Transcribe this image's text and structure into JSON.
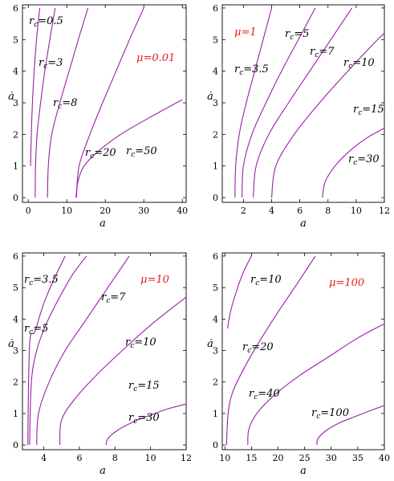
{
  "chart_data": [
    {
      "type": "line",
      "annotation": "μ=0.01",
      "xlabel": "a",
      "ylabel": "ȧ",
      "xlim": [
        -1.5,
        41
      ],
      "ylim": [
        -0.15,
        6.1
      ],
      "xticks": [
        0,
        10,
        20,
        30,
        40
      ],
      "yticks": [
        0,
        1,
        2,
        3,
        4,
        5,
        6
      ],
      "series": [
        {
          "name": "r_c=0.5",
          "label_sub": "c",
          "label_value": "=0.5",
          "x": [
            0.6,
            0.7,
            0.9,
            1.2,
            1.7,
            2.3,
            3.0
          ],
          "y": [
            1.0,
            1.6,
            2.4,
            3.3,
            4.3,
            5.2,
            6.0
          ]
        },
        {
          "name": "r_c=3",
          "label_sub": "c",
          "label_value": "=3",
          "x": [
            1.8,
            1.9,
            2.3,
            3.2,
            4.3,
            5.6,
            7.0
          ],
          "y": [
            0.0,
            1.0,
            2.0,
            3.0,
            4.0,
            5.0,
            6.0
          ]
        },
        {
          "name": "r_c=8",
          "label_sub": "c",
          "label_value": "=8",
          "x": [
            5.0,
            5.2,
            6.1,
            8.2,
            10.6,
            13.0,
            15.5
          ],
          "y": [
            0.0,
            1.0,
            2.0,
            3.0,
            4.0,
            5.0,
            6.0
          ]
        },
        {
          "name": "r_c=20",
          "label_sub": "c",
          "label_value": "=20",
          "x": [
            12.5,
            13.2,
            16.0,
            19.3,
            22.8,
            26.3,
            30.0
          ],
          "y": [
            0.0,
            1.0,
            2.0,
            3.0,
            4.0,
            5.0,
            6.0
          ]
        },
        {
          "name": "r_c=50",
          "label_sub": "c",
          "label_value": "=50",
          "x": [
            12.4,
            12.9,
            14.5,
            18.5,
            24.0,
            31.0,
            40.0
          ],
          "y": [
            0.0,
            0.5,
            1.0,
            1.5,
            2.0,
            2.5,
            3.1
          ]
        }
      ]
    },
    {
      "type": "line",
      "annotation": "μ=1",
      "xlabel": "a",
      "ylabel": "ȧ",
      "xlim": [
        0.5,
        12
      ],
      "ylim": [
        -0.15,
        6.1
      ],
      "xticks": [
        2,
        4,
        6,
        8,
        10,
        12
      ],
      "yticks": [
        0,
        1,
        2,
        3,
        4,
        5,
        6
      ],
      "series": [
        {
          "name": "r_c=3.5",
          "label_sub": "c",
          "label_value": "=3.5",
          "x": [
            1.4,
            1.45,
            1.7,
            2.2,
            2.8,
            3.4,
            4.0
          ],
          "y": [
            0.0,
            1.0,
            2.0,
            3.0,
            4.0,
            5.0,
            6.0
          ]
        },
        {
          "name": "r_c=5",
          "label_sub": "c",
          "label_value": "=5",
          "x": [
            1.9,
            2.0,
            2.6,
            3.6,
            4.7,
            5.9,
            7.1
          ],
          "y": [
            0.0,
            1.0,
            2.0,
            3.0,
            4.0,
            5.0,
            6.0
          ]
        },
        {
          "name": "r_c=7",
          "label_sub": "c",
          "label_value": "=7",
          "x": [
            2.7,
            2.9,
            3.8,
            5.2,
            6.7,
            8.2,
            9.7
          ],
          "y": [
            0.0,
            1.0,
            2.0,
            3.0,
            4.0,
            5.0,
            6.0
          ]
        },
        {
          "name": "r_c=10",
          "label_sub": "c",
          "label_value": "=10",
          "x": [
            4.0,
            4.3,
            5.6,
            7.4,
            9.4,
            11.3,
            12.0
          ],
          "y": [
            0.0,
            1.0,
            2.0,
            3.0,
            4.0,
            4.9,
            5.2
          ]
        },
        {
          "name": "r_c=15",
          "label_sub": "c",
          "label_value": "=15",
          "x": [
            7.6,
            7.8,
            8.5,
            9.6,
            10.8,
            12.0
          ],
          "y": [
            0.0,
            0.5,
            1.0,
            1.5,
            1.9,
            2.2
          ]
        }
      ]
    },
    {
      "type": "line",
      "annotation": "μ=10",
      "xlabel": "a",
      "ylabel": "ȧ",
      "xlim": [
        2.8,
        12
      ],
      "ylim": [
        -0.15,
        6.1
      ],
      "xticks": [
        4,
        6,
        8,
        10,
        12
      ],
      "yticks": [
        0,
        1,
        2,
        3,
        4,
        5,
        6
      ],
      "series": [
        {
          "name": "r_c=3.5",
          "label_sub": "c",
          "label_value": "=3.5",
          "x": [
            3.1,
            3.2,
            3.5,
            4.0,
            4.6,
            5.2
          ],
          "y": [
            0.0,
            3.2,
            3.6,
            4.5,
            5.3,
            6.0
          ]
        },
        {
          "name": "r_c=5",
          "label_sub": "c",
          "label_value": "=5",
          "x": [
            3.2,
            3.3,
            3.6,
            4.1,
            4.8,
            5.6,
            6.4
          ],
          "y": [
            0.0,
            2.0,
            3.0,
            3.8,
            4.6,
            5.4,
            6.0
          ]
        },
        {
          "name": "r_c=7",
          "label_sub": "c",
          "label_value": "=7",
          "x": [
            3.6,
            3.7,
            4.3,
            5.2,
            6.4,
            7.6,
            8.8
          ],
          "y": [
            0.0,
            1.0,
            2.0,
            3.0,
            4.0,
            5.0,
            6.0
          ]
        },
        {
          "name": "r_c=10",
          "label_sub": "c",
          "label_value": "=10",
          "x": [
            4.9,
            5.0,
            5.8,
            7.1,
            8.6,
            10.2,
            12.0
          ],
          "y": [
            0.0,
            0.8,
            1.5,
            2.3,
            3.1,
            3.9,
            4.7
          ]
        },
        {
          "name": "r_c=15",
          "label_sub": "c",
          "label_value": "=15",
          "x": [
            7.5,
            7.6,
            8.1,
            8.9,
            10.0,
            11.0,
            12.0
          ],
          "y": [
            0.0,
            0.2,
            0.45,
            0.7,
            0.95,
            1.15,
            1.3
          ]
        }
      ]
    },
    {
      "type": "line",
      "annotation": "μ=100",
      "xlabel": "a",
      "ylabel": "ȧ",
      "xlim": [
        9.5,
        40
      ],
      "ylim": [
        -0.15,
        6.1
      ],
      "xticks": [
        10,
        15,
        20,
        25,
        30,
        35,
        40
      ],
      "yticks": [
        0,
        1,
        2,
        3,
        4,
        5,
        6
      ],
      "series": [
        {
          "name": "r_c=10",
          "label_sub": "c",
          "label_value": "=10",
          "x": [
            10.5,
            11.0,
            12.2,
            13.5,
            15.0
          ],
          "y": [
            3.7,
            4.2,
            4.9,
            5.5,
            6.0
          ]
        },
        {
          "name": "r_c=20",
          "label_sub": "c",
          "label_value": "=20",
          "x": [
            10.3,
            10.6,
            11.5,
            13.8,
            16.9,
            20.3,
            23.5,
            27.0
          ],
          "y": [
            0.0,
            1.0,
            1.7,
            2.5,
            3.4,
            4.3,
            5.1,
            6.0
          ]
        },
        {
          "name": "r_c=40",
          "label_sub": "c",
          "label_value": "=40",
          "x": [
            14.3,
            14.5,
            16.0,
            19.4,
            24.0,
            29.5,
            35.0,
            40.0
          ],
          "y": [
            0.0,
            0.5,
            1.0,
            1.6,
            2.2,
            2.8,
            3.4,
            3.85
          ]
        },
        {
          "name": "r_c=100",
          "label_sub": "c",
          "label_value": "=100",
          "x": [
            27.3,
            27.5,
            29.0,
            31.5,
            34.5,
            37.5,
            40.0
          ],
          "y": [
            0.0,
            0.2,
            0.45,
            0.7,
            0.9,
            1.1,
            1.25
          ]
        }
      ]
    }
  ],
  "labels": [
    [
      {
        "sub": "c",
        "value": "=0.5"
      },
      {
        "sub": "c",
        "value": "=3"
      },
      {
        "sub": "c",
        "value": "=8"
      },
      {
        "sub": "c",
        "value": "=20"
      },
      {
        "sub": "c",
        "value": "=50"
      }
    ],
    [
      {
        "sub": "c",
        "value": "=3.5"
      },
      {
        "sub": "c",
        "value": "=5"
      },
      {
        "sub": "c",
        "value": "=7"
      },
      {
        "sub": "c",
        "value": "=10"
      },
      {
        "sub": "c",
        "value": "=15"
      },
      {
        "sub": "c",
        "value": "=30"
      }
    ],
    [
      {
        "sub": "c",
        "value": "=3.5"
      },
      {
        "sub": "c",
        "value": "=5"
      },
      {
        "sub": "c",
        "value": "=7"
      },
      {
        "sub": "c",
        "value": "=10"
      },
      {
        "sub": "c",
        "value": "=15"
      },
      {
        "sub": "c",
        "value": "=30"
      }
    ],
    [
      {
        "sub": "c",
        "value": "=10"
      },
      {
        "sub": "c",
        "value": "=20"
      },
      {
        "sub": "c",
        "value": "=40"
      },
      {
        "sub": "c",
        "value": "=100"
      }
    ]
  ],
  "colors": {
    "curve": "#9a1fa8",
    "annotation": "#e8191e"
  }
}
